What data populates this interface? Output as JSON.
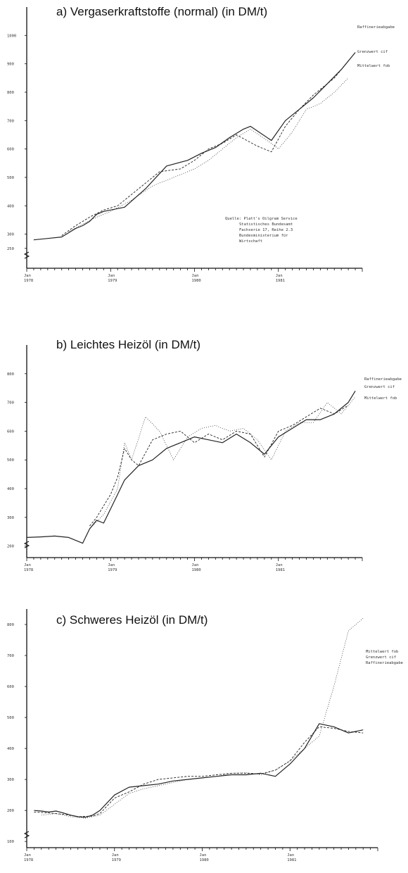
{
  "charts": {
    "a": {
      "title": "a) Vergaserkraftstoffe (normal) (in DM/t)",
      "legend": [
        "Raffinerieabgabe",
        "Grenzwert cif",
        "Mittelwert fob"
      ],
      "source": [
        "Quelle: Platt's Oilgram Service",
        "Statistisches Bundesamt",
        "Fachserie 17, Reihe 2.3",
        "Bundesministerium für",
        "Wirtschaft"
      ]
    },
    "b": {
      "title": "b) Leichtes Heizöl (in DM/t)",
      "legend": [
        "Raffinerieabgabe",
        "Grenzwert cif",
        "Mittelwert fob"
      ]
    },
    "c": {
      "title": "c) Schweres Heizöl (in DM/t)",
      "legend": [
        "Mittelwert fob",
        "Grenzwert cif",
        "Raffinerieabgabe"
      ]
    }
  },
  "chart_data": [
    {
      "type": "line",
      "title": "a) Vergaserkraftstoffe (normal) (in DM/t)",
      "xlabel": "",
      "ylabel": "",
      "x_ticks": [
        "Jan 1978",
        "Jan 1979",
        "Jan 1980",
        "Jan 1981"
      ],
      "xlim": [
        0,
        48
      ],
      "ylim": [
        180,
        1100
      ],
      "y_ticks": [
        250,
        300,
        400,
        500,
        600,
        700,
        800,
        900,
        1000
      ],
      "grid": false,
      "legend_position": "right",
      "series": [
        {
          "name": "Raffinerieabgabe",
          "x": [
            1,
            3,
            5,
            7,
            8,
            9,
            10,
            11,
            12,
            14,
            17,
            20,
            23,
            25,
            27,
            29,
            31,
            32,
            35,
            37,
            39,
            41,
            43,
            45,
            47
          ],
          "y": [
            280,
            285,
            290,
            320,
            330,
            345,
            370,
            380,
            385,
            395,
            460,
            540,
            560,
            585,
            605,
            640,
            670,
            680,
            630,
            700,
            740,
            780,
            830,
            880,
            940
          ]
        },
        {
          "name": "Grenzwert cif",
          "x": [
            5,
            7,
            8,
            9,
            11,
            13,
            16,
            19,
            22,
            24,
            26,
            28,
            30,
            33,
            35,
            37,
            39,
            41,
            44,
            46
          ],
          "y": [
            295,
            330,
            345,
            360,
            385,
            400,
            460,
            520,
            530,
            560,
            600,
            620,
            650,
            610,
            590,
            680,
            740,
            790,
            850,
            910
          ]
        },
        {
          "name": "Mittelwert fob",
          "x": [
            6,
            8,
            10,
            12,
            15,
            18,
            21,
            24,
            26,
            28,
            30,
            32,
            35,
            36,
            38,
            40,
            42,
            44,
            46
          ],
          "y": [
            310,
            335,
            360,
            380,
            420,
            470,
            500,
            530,
            560,
            600,
            640,
            670,
            620,
            600,
            660,
            740,
            760,
            800,
            850
          ]
        }
      ]
    },
    {
      "type": "line",
      "title": "b) Leichtes Heizöl (in DM/t)",
      "xlabel": "",
      "ylabel": "",
      "x_ticks": [
        "Jan 1978",
        "Jan 1979",
        "Jan 1980",
        "Jan 1981"
      ],
      "xlim": [
        0,
        48
      ],
      "ylim": [
        160,
        900
      ],
      "y_ticks": [
        200,
        300,
        400,
        500,
        600,
        700,
        800
      ],
      "grid": false,
      "legend_position": "right",
      "series": [
        {
          "name": "Raffinerieabgabe",
          "x": [
            0,
            2,
            4,
            6,
            8,
            9,
            10,
            11,
            12,
            13,
            14,
            16,
            18,
            20,
            22,
            24,
            26,
            28,
            30,
            32,
            34,
            36,
            38,
            40,
            42,
            44,
            46,
            47
          ],
          "y": [
            230,
            232,
            235,
            230,
            210,
            260,
            290,
            280,
            330,
            380,
            430,
            480,
            500,
            540,
            560,
            580,
            570,
            560,
            590,
            560,
            520,
            580,
            610,
            640,
            640,
            660,
            700,
            740
          ]
        },
        {
          "name": "Grenzwert cif",
          "x": [
            9,
            10,
            11,
            12,
            13,
            14,
            15,
            16,
            18,
            20,
            22,
            24,
            26,
            28,
            30,
            32,
            34,
            36,
            38,
            40,
            42,
            44,
            46
          ],
          "y": [
            270,
            300,
            340,
            380,
            440,
            540,
            500,
            480,
            570,
            590,
            600,
            560,
            590,
            570,
            600,
            590,
            510,
            600,
            620,
            650,
            680,
            660,
            690
          ]
        },
        {
          "name": "Mittelwert fob",
          "x": [
            9,
            11,
            13,
            14,
            15,
            17,
            19,
            21,
            23,
            25,
            27,
            29,
            31,
            33,
            35,
            37,
            39,
            41,
            43,
            45,
            47
          ],
          "y": [
            260,
            310,
            400,
            560,
            500,
            650,
            600,
            500,
            580,
            610,
            620,
            600,
            610,
            570,
            500,
            600,
            630,
            630,
            700,
            660,
            720
          ]
        }
      ]
    },
    {
      "type": "line",
      "title": "c) Schweres Heizöl (in DM/t)",
      "xlabel": "",
      "ylabel": "",
      "x_ticks": [
        "Jan 1978",
        "Jan 1979",
        "Jan 1980",
        "Jan 1981"
      ],
      "xlim": [
        0,
        48
      ],
      "ylim": [
        80,
        850
      ],
      "y_ticks": [
        100,
        200,
        300,
        400,
        500,
        600,
        700,
        800
      ],
      "grid": false,
      "legend_position": "right",
      "series": [
        {
          "name": "Mittelwert fob",
          "x": [
            1,
            2,
            3,
            4,
            5,
            6,
            7,
            8,
            9,
            10,
            12,
            14,
            16,
            18,
            20,
            22,
            24,
            26,
            28,
            30,
            32,
            34,
            36,
            38,
            40,
            42,
            44,
            46
          ],
          "y": [
            200,
            198,
            195,
            198,
            192,
            185,
            180,
            178,
            185,
            200,
            250,
            275,
            280,
            285,
            295,
            300,
            305,
            310,
            315,
            315,
            320,
            310,
            350,
            400,
            480,
            470,
            450,
            460
          ]
        },
        {
          "name": "Grenzwert cif",
          "x": [
            1,
            3,
            5,
            7,
            9,
            10,
            12,
            14,
            16,
            18,
            20,
            22,
            24,
            26,
            28,
            30,
            32,
            34,
            36,
            38,
            40,
            42,
            44,
            46
          ],
          "y": [
            195,
            192,
            188,
            180,
            182,
            190,
            240,
            260,
            285,
            300,
            305,
            310,
            310,
            315,
            320,
            320,
            318,
            330,
            360,
            420,
            470,
            465,
            455,
            450
          ]
        },
        {
          "name": "Raffinerieabgabe",
          "x": [
            2,
            4,
            6,
            8,
            10,
            12,
            14,
            16,
            18,
            20,
            22,
            24,
            26,
            28,
            30,
            32,
            34,
            36,
            38,
            40,
            42,
            44,
            46
          ],
          "y": [
            185,
            190,
            180,
            175,
            185,
            220,
            255,
            270,
            280,
            290,
            300,
            305,
            310,
            320,
            322,
            315,
            330,
            360,
            400,
            440,
            600,
            780,
            820
          ]
        }
      ]
    }
  ]
}
